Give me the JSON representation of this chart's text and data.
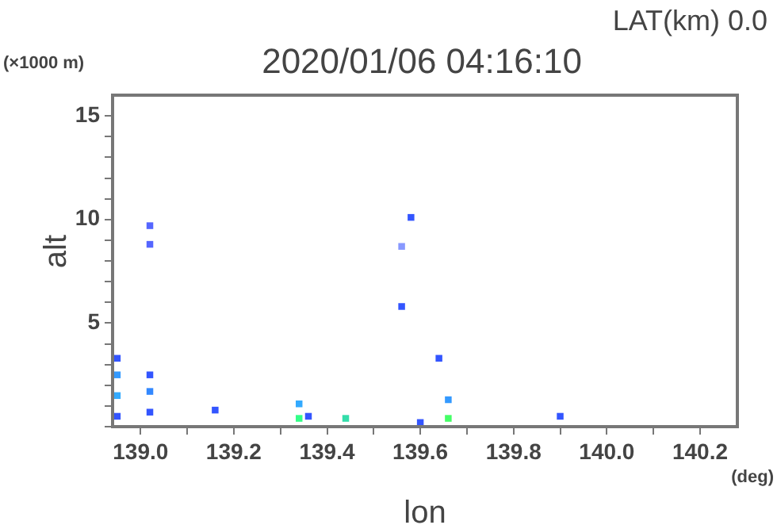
{
  "chart_data": {
    "type": "scatter",
    "title": "2020/01/06 04:16:10",
    "subtitle": "LAT(km) 0.0",
    "xlabel": "lon",
    "ylabel": "alt",
    "annotations": [
      "(×1000 m)",
      "(deg)"
    ],
    "x": [
      138.95,
      138.95,
      138.95,
      138.95,
      139.02,
      139.02,
      139.02,
      139.02,
      139.02,
      139.16,
      139.34,
      139.34,
      139.36,
      139.44,
      139.58,
      139.56,
      139.56,
      139.64,
      139.66,
      139.66,
      139.6,
      139.9
    ],
    "values": [
      0.5,
      1.5,
      2.5,
      3.3,
      0.7,
      1.7,
      2.5,
      8.8,
      9.7,
      0.8,
      0.4,
      1.1,
      0.5,
      0.4,
      10.1,
      8.7,
      5.8,
      3.3,
      0.4,
      1.3,
      0.2,
      0.5
    ],
    "colors": [
      "#3355ff",
      "#33aaff",
      "#3399ff",
      "#3355ff",
      "#3355ff",
      "#3388ff",
      "#3355ff",
      "#5566ff",
      "#5566ff",
      "#3355ff",
      "#33ff88",
      "#33aaff",
      "#3355ff",
      "#33ddaa",
      "#3355ff",
      "#8899ff",
      "#3355ff",
      "#3355ff",
      "#44ff66",
      "#3399ff",
      "#3355ff",
      "#3355ff"
    ],
    "marker": "square",
    "grid": false,
    "legend": false,
    "xlim": [
      138.94,
      140.28
    ],
    "xticks": [
      {
        "value": 139,
        "label": "139.0"
      },
      {
        "value": 139.1,
        "label": null
      },
      139.2,
      {
        "value": 139.3,
        "label": null
      },
      139.4,
      {
        "value": 139.5,
        "label": null
      },
      139.6,
      {
        "value": 139.7,
        "label": null
      },
      139.8,
      {
        "value": 139.9,
        "label": null
      },
      {
        "value": 140,
        "label": "140.0"
      },
      {
        "value": 140.1,
        "label": null
      },
      140.2
    ],
    "ylim": [
      0,
      16
    ],
    "yticks": [
      {
        "value": 0,
        "label": null
      },
      {
        "value": 1,
        "label": null
      },
      {
        "value": 2,
        "label": null
      },
      {
        "value": 3,
        "label": null
      },
      {
        "value": 4,
        "label": null
      },
      5,
      {
        "value": 6,
        "label": null
      },
      {
        "value": 7,
        "label": null
      },
      {
        "value": 8,
        "label": null
      },
      {
        "value": 9,
        "label": null
      },
      10,
      {
        "value": 11,
        "label": null
      },
      {
        "value": 12,
        "label": null
      },
      {
        "value": 13,
        "label": null
      },
      {
        "value": 14,
        "label": null
      },
      15
    ]
  }
}
